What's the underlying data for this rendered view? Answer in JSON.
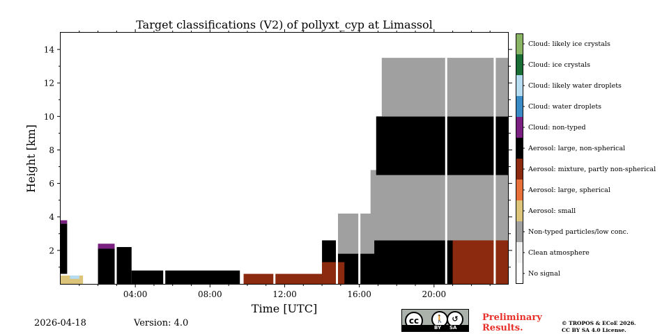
{
  "chart_data": {
    "type": "heatmap",
    "title": "Target classifications (V2) of pollyxt_cyp at Limassol",
    "xlabel": "Time [UTC]",
    "ylabel": "Height [km]",
    "xlim_hours": [
      0,
      24
    ],
    "ylim_km": [
      0,
      15
    ],
    "x_ticks": [
      {
        "hour": 4,
        "label": "04:00"
      },
      {
        "hour": 8,
        "label": "08:00"
      },
      {
        "hour": 12,
        "label": "12:00"
      },
      {
        "hour": 16,
        "label": "16:00"
      },
      {
        "hour": 20,
        "label": "20:00"
      }
    ],
    "y_ticks": [
      {
        "km": 2,
        "label": "2"
      },
      {
        "km": 4,
        "label": "4"
      },
      {
        "km": 6,
        "label": "6"
      },
      {
        "km": 8,
        "label": "8"
      },
      {
        "km": 10,
        "label": "10"
      },
      {
        "km": 12,
        "label": "12"
      },
      {
        "km": 14,
        "label": "14"
      }
    ],
    "classes": [
      {
        "id": 0,
        "name": "No signal",
        "color": "#ffffff"
      },
      {
        "id": 1,
        "name": "Clean atmosphere",
        "color": "#f0f0f0"
      },
      {
        "id": 2,
        "name": "Non-typed particles/low conc.",
        "color": "#a0a0a0"
      },
      {
        "id": 3,
        "name": "Aerosol: small",
        "color": "#dcc47a"
      },
      {
        "id": 4,
        "name": "Aerosol: large, spherical",
        "color": "#e8703a"
      },
      {
        "id": 5,
        "name": "Aerosol: mixture, partly non-spherical",
        "color": "#8b2a0e"
      },
      {
        "id": 6,
        "name": "Aerosol: large, non-spherical",
        "color": "#000000"
      },
      {
        "id": 7,
        "name": "Cloud: non-typed",
        "color": "#7a2080"
      },
      {
        "id": 8,
        "name": "Cloud: water droplets",
        "color": "#3a8ac6"
      },
      {
        "id": 9,
        "name": "Cloud: likely water droplets",
        "color": "#b6dcf2"
      },
      {
        "id": 10,
        "name": "Cloud: ice crystals",
        "color": "#1a6e35"
      },
      {
        "id": 11,
        "name": "Cloud: likely ice crystals",
        "color": "#88b464"
      }
    ],
    "regions": [
      {
        "class": 6,
        "t0": 0.0,
        "t1": 0.35,
        "h0": 0.6,
        "h1": 3.6
      },
      {
        "class": 7,
        "t0": 0.0,
        "t1": 0.35,
        "h0": 3.6,
        "h1": 3.8
      },
      {
        "class": 3,
        "t0": 0.0,
        "t1": 1.2,
        "h0": 0.0,
        "h1": 0.5
      },
      {
        "class": 9,
        "t0": 0.5,
        "t1": 1.0,
        "h0": 0.3,
        "h1": 0.5
      },
      {
        "class": 6,
        "t0": 2.0,
        "t1": 3.8,
        "h0": 0.0,
        "h1": 2.2
      },
      {
        "class": 7,
        "t0": 2.0,
        "t1": 2.9,
        "h0": 2.1,
        "h1": 2.4
      },
      {
        "class": 6,
        "t0": 3.8,
        "t1": 9.6,
        "h0": 0.0,
        "h1": 0.8
      },
      {
        "class": 5,
        "t0": 9.8,
        "t1": 14.0,
        "h0": 0.0,
        "h1": 0.6
      },
      {
        "class": 6,
        "t0": 14.0,
        "t1": 24.0,
        "h0": 0.0,
        "h1": 2.6
      },
      {
        "class": 5,
        "t0": 14.0,
        "t1": 15.2,
        "h0": 0.0,
        "h1": 1.3
      },
      {
        "class": 5,
        "t0": 21.0,
        "t1": 24.0,
        "h0": 0.0,
        "h1": 3.3
      },
      {
        "class": 2,
        "t0": 14.8,
        "t1": 16.8,
        "h0": 1.8,
        "h1": 4.2
      },
      {
        "class": 2,
        "t0": 16.6,
        "t1": 24.0,
        "h0": 2.6,
        "h1": 6.8
      },
      {
        "class": 6,
        "t0": 16.9,
        "t1": 24.0,
        "h0": 6.5,
        "h1": 10.0
      },
      {
        "class": 2,
        "t0": 17.2,
        "t1": 24.0,
        "h0": 10.0,
        "h1": 13.5
      }
    ],
    "data_gaps_hours": [
      1.85,
      2.95,
      5.55,
      11.45,
      14.8,
      16.0,
      20.65,
      23.25
    ]
  },
  "footer": {
    "date": "2026-04-18",
    "version": "Version: 4.0",
    "preliminary_line1": "Preliminary",
    "preliminary_line2": "Results.",
    "copyright_line1": "© TROPOS & ECoE 2026.",
    "copyright_line2": "CC BY SA 4.0 License."
  },
  "license_badge": {
    "cc": "cc",
    "by": "BY",
    "sa": "SA"
  }
}
